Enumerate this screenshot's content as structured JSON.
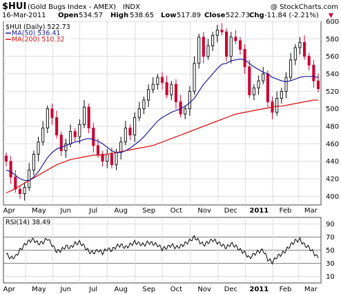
{
  "header": {
    "title": "$HUI",
    "subtitle": "(Gold Bugs Index - AMEX)",
    "exchange": "INDX",
    "watermark": "@ StockCharts.com",
    "date": "16-Mar-2011",
    "open_label": "Open",
    "open": "534.57",
    "high_label": "High",
    "high": "538.65",
    "low_label": "Low",
    "low": "517.89",
    "close_label": "Close",
    "close": "522.73",
    "chg_label": "Chg",
    "chg": "-11.84 (-2.21%)",
    "chg_arrow": "▼"
  },
  "legend": {
    "price": "$HUI (Daily) 522.73",
    "ma50": "MA(50) 536.41",
    "ma200": "MA(200) 510.32",
    "rsi": "RSI(14) 38.49"
  },
  "colors": {
    "bull": "#000000",
    "bear": "#cc0033",
    "ma50": "#1a1a9c",
    "ma200": "#dd1111",
    "grid": "#dddddd",
    "rsi": "#000000"
  },
  "chart_data": [
    {
      "type": "candlestick",
      "title": "$HUI (Daily) 522.73",
      "ylim": [
        390,
        600
      ],
      "yticks": [
        400,
        420,
        440,
        460,
        480,
        500,
        520,
        540,
        560,
        580,
        600
      ],
      "x_ticks": [
        "Apr",
        "May",
        "Jun",
        "Jul",
        "Aug",
        "Sep",
        "Oct",
        "Nov",
        "Dec",
        "2011",
        "Feb",
        "Mar"
      ],
      "weekly_close": [
        440,
        422,
        408,
        403,
        410,
        430,
        448,
        462,
        478,
        500,
        490,
        470,
        452,
        460,
        474,
        468,
        482,
        502,
        478,
        458,
        448,
        440,
        448,
        436,
        450,
        462,
        478,
        470,
        490,
        500,
        510,
        522,
        528,
        536,
        530,
        516,
        528,
        508,
        494,
        500,
        520,
        552,
        582,
        560,
        572,
        584,
        590,
        588,
        560,
        582,
        578,
        568,
        548,
        516,
        524,
        532,
        540,
        508,
        496,
        512,
        520,
        536,
        556,
        570,
        576,
        560,
        550,
        532,
        523
      ],
      "ma50_weekly": [
        430,
        428,
        424,
        420,
        418,
        418,
        422,
        428,
        436,
        444,
        450,
        454,
        456,
        458,
        460,
        462,
        463,
        465,
        466,
        465,
        463,
        460,
        456,
        452,
        450,
        450,
        452,
        455,
        459,
        463,
        468,
        474,
        480,
        486,
        490,
        493,
        496,
        498,
        500,
        503,
        507,
        512,
        520,
        528,
        534,
        540,
        546,
        551,
        552,
        555,
        556,
        557,
        556,
        552,
        548,
        545,
        542,
        540,
        536,
        534,
        532,
        531,
        532,
        534,
        536,
        537,
        537,
        537,
        536
      ],
      "ma200_weekly": [
        404,
        406,
        409,
        412,
        415,
        418,
        421,
        424,
        427,
        430,
        433,
        436,
        438,
        440,
        442,
        443,
        444,
        445,
        446,
        447,
        447,
        447,
        448,
        449,
        450,
        451,
        452,
        453,
        454,
        455,
        456,
        457,
        458,
        460,
        462,
        464,
        466,
        468,
        470,
        472,
        474,
        476,
        478,
        480,
        482,
        484,
        486,
        488,
        490,
        492,
        494,
        495,
        496,
        497,
        498,
        499,
        500,
        501,
        502,
        503,
        503,
        504,
        505,
        506,
        507,
        508,
        509,
        510,
        510
      ]
    },
    {
      "type": "line",
      "title": "RSI(14) 38.49",
      "ylim": [
        0,
        100
      ],
      "yticks": [
        10,
        30,
        50,
        70,
        90
      ],
      "reference_lines": [
        30,
        50,
        70
      ],
      "x_ticks": [
        "Apr",
        "May",
        "Jun",
        "Jul",
        "Aug",
        "Sep",
        "Oct",
        "Nov",
        "Dec",
        "2011",
        "Feb",
        "Mar"
      ],
      "weekly_rsi": [
        44,
        38,
        40,
        50,
        58,
        64,
        66,
        60,
        62,
        68,
        58,
        48,
        50,
        56,
        54,
        60,
        62,
        56,
        48,
        46,
        50,
        46,
        52,
        50,
        56,
        58,
        54,
        58,
        62,
        60,
        58,
        62,
        60,
        58,
        52,
        54,
        58,
        54,
        56,
        60,
        64,
        70,
        64,
        58,
        62,
        66,
        62,
        58,
        54,
        60,
        56,
        50,
        46,
        38,
        44,
        48,
        50,
        36,
        32,
        40,
        44,
        50,
        58,
        64,
        66,
        58,
        54,
        46,
        38
      ]
    }
  ]
}
